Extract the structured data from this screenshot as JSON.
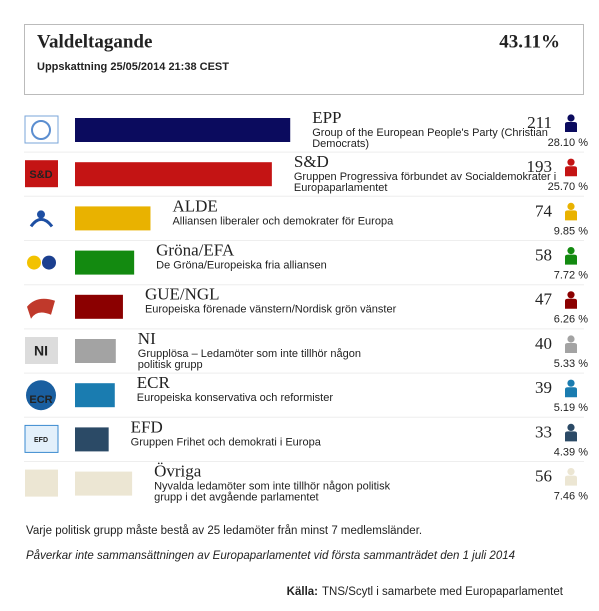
{
  "chart_data": {
    "type": "bar",
    "title": "Valdeltagande",
    "turnout": "43.11%",
    "subtitle": "Uppskattning 25/05/2014 21:38 CEST",
    "categories": [
      "EPP",
      "S&D",
      "ALDE",
      "Gröna/EFA",
      "GUE/NGL",
      "NI",
      "ECR",
      "EFD",
      "Övriga"
    ],
    "descriptions": [
      "Group of the European People's Party (Christian Democrats)",
      "Gruppen Progressiva förbundet av Socialdemokrater i Europaparlamentet",
      "Alliansen liberaler och demokrater för Europa",
      "De Gröna/Europeiska fria alliansen",
      "Europeiska förenade vänstern/Nordisk grön vänster",
      "Grupplösa – Ledamöter som inte tillhör någon politisk grupp",
      "Europeiska konservativa och reformister",
      "Gruppen Frihet och demokrati i Europa",
      "Nyvalda ledamöter som inte tillhör någon politisk grupp i det avgående parlamentet"
    ],
    "values": [
      211,
      193,
      74,
      58,
      47,
      40,
      39,
      33,
      56
    ],
    "share_labels": [
      "28.10 %",
      "25.70 %",
      "9.85 %",
      "7.72 %",
      "6.26 %",
      "5.33 %",
      "5.19 %",
      "4.39 %",
      "7.46 %"
    ],
    "colors": [
      "#0b0b5e",
      "#c41414",
      "#e9b200",
      "#138a10",
      "#8b0000",
      "#a3a3a3",
      "#1a7cb0",
      "#2b4a66",
      "#ece6d3"
    ],
    "logo_texts": [
      null,
      "S&D",
      null,
      null,
      null,
      "NI",
      "ECR",
      "EFD",
      null
    ],
    "notes": [
      "Varje politisk grupp måste bestå av 25 ledamöter från minst 7 medlemsländer.",
      "Påverkar inte sammansättningen av Europaparlamentet vid första sammanträdet den 1 juli 2014"
    ],
    "source_label": "Källa:",
    "source": "TNS/Scytl i samarbete med Europaparlamentet"
  }
}
